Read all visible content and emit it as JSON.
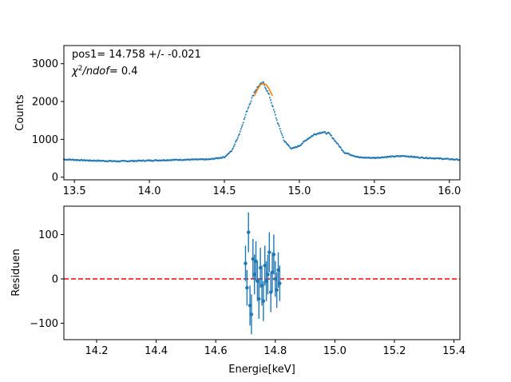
{
  "chart_data": [
    {
      "type": "scatter",
      "xlim": [
        13.43,
        16.07
      ],
      "ylim": [
        -70,
        3480
      ],
      "xticks": [
        "13.5",
        "14.0",
        "14.5",
        "15.0",
        "15.5",
        "16.0"
      ],
      "xtick_values": [
        13.5,
        14.0,
        14.5,
        15.0,
        15.5,
        16.0
      ],
      "yticks": [
        "0",
        "1000",
        "2000",
        "3000"
      ],
      "ytick_values": [
        0,
        1000,
        2000,
        3000
      ],
      "xlabel": "",
      "ylabel": "Counts",
      "annotation_1": "pos1= 14.758 +/- -0.021",
      "annotation_2_prefix": "χ",
      "annotation_2_sup": "2",
      "annotation_2_rest": "/ndof",
      "annotation_2_value": "= 0.4",
      "series_color": "#1f77b4",
      "fit_color": "#ff7f0e",
      "spectrum": {
        "x": [
          13.43,
          13.6,
          13.8,
          14.0,
          14.2,
          14.4,
          14.5,
          14.55,
          14.6,
          14.65,
          14.7,
          14.73,
          14.76,
          14.8,
          14.85,
          14.9,
          14.95,
          15.0,
          15.05,
          15.1,
          15.15,
          15.2,
          15.25,
          15.3,
          15.4,
          15.5,
          15.6,
          15.7,
          15.8,
          15.9,
          16.07
        ],
        "y": [
          470,
          440,
          420,
          440,
          460,
          470,
          530,
          700,
          1150,
          1750,
          2250,
          2420,
          2500,
          2150,
          1500,
          950,
          750,
          830,
          1000,
          1130,
          1190,
          1150,
          900,
          650,
          520,
          510,
          540,
          560,
          520,
          500,
          460
        ]
      },
      "fit": {
        "x": [
          14.7,
          14.72,
          14.74,
          14.76,
          14.78,
          14.8,
          14.82
        ],
        "y": [
          2150,
          2320,
          2440,
          2480,
          2440,
          2320,
          2150
        ]
      }
    },
    {
      "type": "scatter",
      "xlim": [
        14.09,
        15.42
      ],
      "ylim": [
        -137,
        164
      ],
      "xticks": [
        "14.2",
        "14.4",
        "14.6",
        "14.8",
        "15.0",
        "15.2",
        "15.4"
      ],
      "xtick_values": [
        14.2,
        14.4,
        14.6,
        14.8,
        15.0,
        15.2,
        15.4
      ],
      "yticks": [
        "−100",
        "0",
        "100"
      ],
      "ytick_values": [
        -100,
        0,
        100
      ],
      "xlabel": "Energie[keV]",
      "ylabel": "Residuen",
      "zero_line_color": "#ff0000",
      "points": {
        "x": [
          14.7,
          14.705,
          14.71,
          14.715,
          14.72,
          14.725,
          14.73,
          14.735,
          14.74,
          14.745,
          14.75,
          14.755,
          14.76,
          14.765,
          14.77,
          14.775,
          14.78,
          14.785,
          14.79,
          14.795,
          14.8,
          14.805,
          14.81,
          14.815
        ],
        "y": [
          35,
          -20,
          105,
          -60,
          -80,
          45,
          10,
          40,
          -5,
          -45,
          25,
          -15,
          -50,
          30,
          -5,
          10,
          60,
          -30,
          15,
          55,
          0,
          -25,
          20,
          -10
        ],
        "err": [
          40,
          40,
          45,
          45,
          45,
          45,
          45,
          45,
          45,
          45,
          45,
          45,
          45,
          45,
          45,
          45,
          45,
          45,
          45,
          45,
          40,
          40,
          40,
          40
        ]
      }
    }
  ]
}
